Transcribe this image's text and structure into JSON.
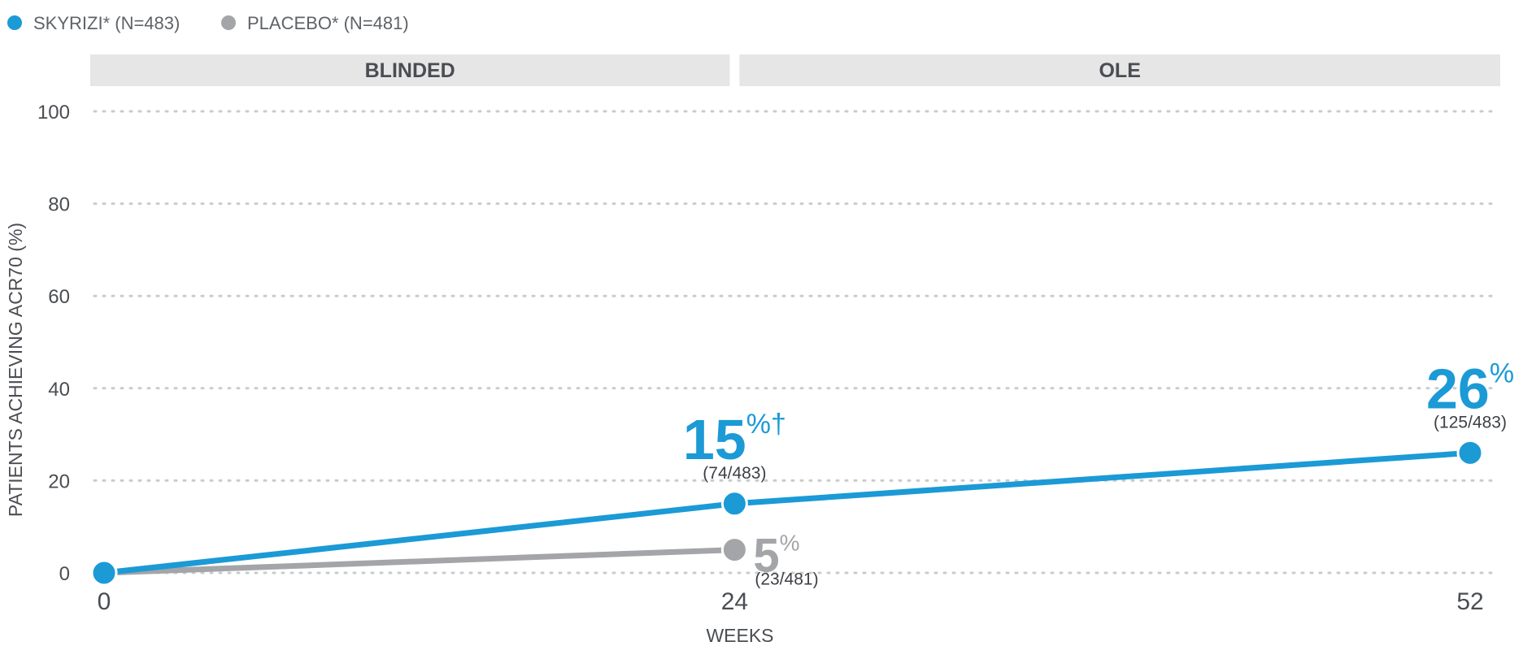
{
  "colors": {
    "skyrizi": "#1b9ad6",
    "placebo": "#a3a5a8",
    "band": "#e6e6e6",
    "grid": "#c9cbcd",
    "text": "#4a4d52"
  },
  "legend": [
    {
      "label": "SKYRIZI* (N=483)",
      "series": "skyrizi"
    },
    {
      "label": "PLACEBO* (N=481)",
      "series": "placebo"
    }
  ],
  "phases": [
    {
      "label": "BLINDED",
      "from": 0,
      "to": 24
    },
    {
      "label": "OLE",
      "from": 24,
      "to": 52
    }
  ],
  "chart_data": {
    "type": "line",
    "xlabel": "WEEKS",
    "ylabel": "PATIENTS ACHIEVING ACR70 (%)",
    "x_ticks": [
      0,
      24,
      52
    ],
    "xlim": [
      0,
      52
    ],
    "ylim": [
      0,
      100
    ],
    "y_ticks": [
      0,
      20,
      40,
      60,
      80,
      100
    ],
    "grid": true,
    "legend_position": "top-left",
    "series": [
      {
        "name": "SKYRIZI* (N=483)",
        "key": "skyrizi",
        "x": [
          0,
          24,
          52
        ],
        "y": [
          0,
          15,
          26
        ],
        "labels": [
          null,
          {
            "value": "15",
            "suffix": "%†",
            "fraction": "(74/483)"
          },
          {
            "value": "26",
            "suffix": "%",
            "fraction": "(125/483)"
          }
        ]
      },
      {
        "name": "PLACEBO* (N=481)",
        "key": "placebo",
        "x": [
          0,
          24
        ],
        "y": [
          0,
          5
        ],
        "labels": [
          null,
          {
            "value": "5",
            "suffix": "%",
            "fraction": "(23/481)"
          }
        ]
      }
    ]
  }
}
